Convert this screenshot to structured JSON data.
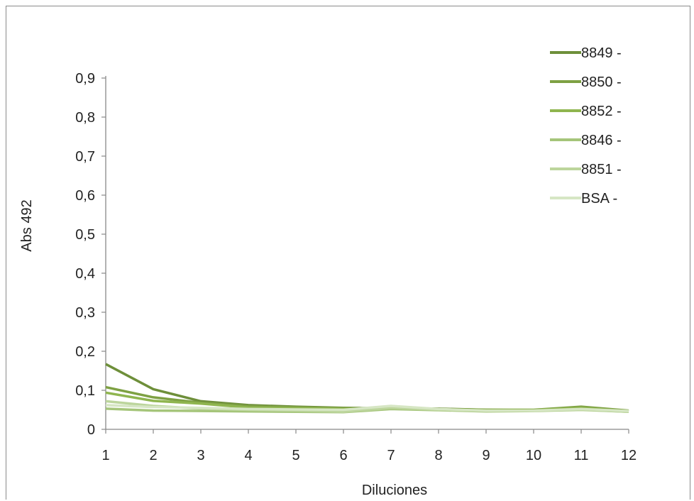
{
  "chart_data": {
    "type": "line",
    "xlabel": "Diluciones",
    "ylabel": "Abs 492",
    "categories": [
      "1",
      "2",
      "3",
      "4",
      "5",
      "6",
      "7",
      "8",
      "9",
      "10",
      "11",
      "12"
    ],
    "ylim": [
      0,
      0.9
    ],
    "yticks": [
      "0",
      "0,1",
      "0,2",
      "0,3",
      "0,4",
      "0,5",
      "0,6",
      "0,7",
      "0,8",
      "0,9"
    ],
    "grid": false,
    "legend_position": "top-right",
    "series": [
      {
        "name": "8849 -",
        "color": "#6e8f3a",
        "values": [
          0.167,
          0.103,
          0.072,
          0.062,
          0.058,
          0.055,
          0.054,
          0.053,
          0.05,
          0.049,
          0.052,
          0.047
        ]
      },
      {
        "name": "8850 -",
        "color": "#7ea143",
        "values": [
          0.108,
          0.082,
          0.068,
          0.059,
          0.056,
          0.054,
          0.054,
          0.052,
          0.05,
          0.05,
          0.058,
          0.048
        ]
      },
      {
        "name": "8852 -",
        "color": "#8fb54f",
        "values": [
          0.094,
          0.073,
          0.066,
          0.056,
          0.054,
          0.052,
          0.053,
          0.051,
          0.049,
          0.049,
          0.055,
          0.046
        ]
      },
      {
        "name": "8846 -",
        "color": "#a5c57a",
        "values": [
          0.053,
          0.048,
          0.047,
          0.046,
          0.045,
          0.044,
          0.052,
          0.049,
          0.046,
          0.047,
          0.05,
          0.045
        ]
      },
      {
        "name": "8851 -",
        "color": "#bcd59c",
        "values": [
          0.072,
          0.06,
          0.053,
          0.05,
          0.048,
          0.045,
          0.055,
          0.05,
          0.047,
          0.048,
          0.051,
          0.045
        ]
      },
      {
        "name": "BSA -",
        "color": "#d6e6c4",
        "values": [
          0.062,
          0.057,
          0.055,
          0.052,
          0.051,
          0.05,
          0.06,
          0.052,
          0.048,
          0.048,
          0.052,
          0.047
        ]
      }
    ]
  }
}
